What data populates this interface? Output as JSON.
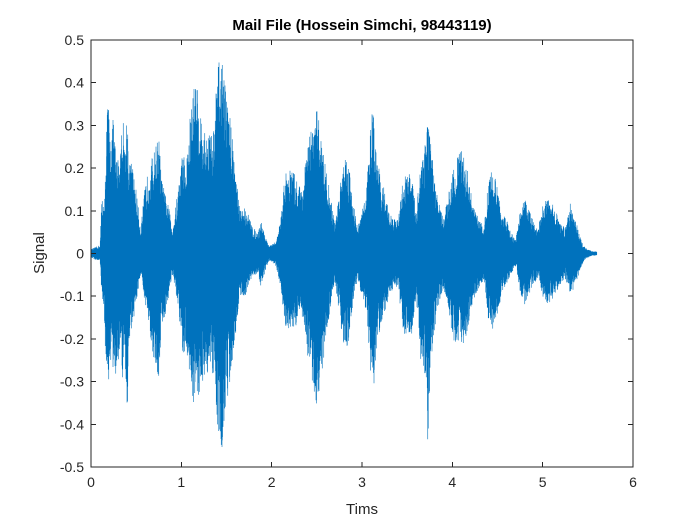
{
  "chart_data": {
    "type": "line",
    "title": "Mail File (Hossein Simchi, 98443119)",
    "xlabel": "Tims",
    "ylabel": "Signal",
    "xlim": [
      0,
      6
    ],
    "ylim": [
      -0.5,
      0.5
    ],
    "grid": false,
    "xticks": [
      0,
      1,
      2,
      3,
      4,
      5,
      6
    ],
    "xtick_labels": [
      "0",
      "1",
      "2",
      "3",
      "4",
      "5",
      "6"
    ],
    "yticks": [
      0.5,
      0.4,
      0.3,
      0.2,
      0.1,
      0,
      -0.1,
      -0.2,
      -0.3,
      -0.4,
      -0.5
    ],
    "ytick_labels": [
      "0.5",
      "0.4",
      "0.3",
      "0.2",
      "0.1",
      "0",
      "-0.1",
      "-0.2",
      "-0.3",
      "-0.4",
      "-0.5"
    ],
    "series_color": "#0072BD",
    "envelope": {
      "t": [
        0,
        0.1,
        0.12,
        0.15,
        0.17,
        0.19,
        0.21,
        0.25,
        0.28,
        0.32,
        0.35,
        0.38,
        0.4,
        0.42,
        0.45,
        0.5,
        0.55,
        0.6,
        0.65,
        0.7,
        0.75,
        0.78,
        0.82,
        0.86,
        0.9,
        0.95,
        1.0,
        1.02,
        1.05,
        1.1,
        1.15,
        1.2,
        1.25,
        1.3,
        1.35,
        1.4,
        1.45,
        1.48,
        1.52,
        1.55,
        1.6,
        1.65,
        1.7,
        1.73,
        1.76,
        1.8,
        1.85,
        1.88,
        1.92,
        1.96,
        2.0,
        2.05,
        2.1,
        2.15,
        2.2,
        2.25,
        2.3,
        2.35,
        2.4,
        2.45,
        2.5,
        2.55,
        2.6,
        2.65,
        2.7,
        2.75,
        2.8,
        2.85,
        2.9,
        2.95,
        3.0,
        3.05,
        3.1,
        3.13,
        3.16,
        3.2,
        3.25,
        3.3,
        3.35,
        3.4,
        3.45,
        3.5,
        3.55,
        3.6,
        3.65,
        3.7,
        3.73,
        3.76,
        3.8,
        3.85,
        3.9,
        3.95,
        4.0,
        4.05,
        4.1,
        4.15,
        4.2,
        4.25,
        4.3,
        4.35,
        4.4,
        4.45,
        4.5,
        4.55,
        4.6,
        4.65,
        4.7,
        4.75,
        4.8,
        4.85,
        4.9,
        4.95,
        5.0,
        5.05,
        5.1,
        5.15,
        5.2,
        5.25,
        5.3,
        5.35,
        5.4,
        5.45,
        5.5,
        5.55,
        5.6
      ],
      "upper": [
        0.01,
        0.02,
        0.14,
        0.11,
        0.31,
        0.37,
        0.28,
        0.32,
        0.22,
        0.24,
        0.33,
        0.25,
        0.36,
        0.21,
        0.22,
        0.15,
        0.06,
        0.16,
        0.21,
        0.24,
        0.28,
        0.18,
        0.14,
        0.11,
        0.06,
        0.13,
        0.22,
        0.25,
        0.2,
        0.33,
        0.42,
        0.36,
        0.28,
        0.3,
        0.27,
        0.44,
        0.47,
        0.4,
        0.35,
        0.31,
        0.2,
        0.1,
        0.11,
        0.1,
        0.08,
        0.06,
        0.05,
        0.08,
        0.05,
        0.02,
        0.02,
        0.03,
        0.08,
        0.19,
        0.2,
        0.19,
        0.16,
        0.17,
        0.26,
        0.3,
        0.34,
        0.28,
        0.2,
        0.14,
        0.07,
        0.15,
        0.24,
        0.22,
        0.13,
        0.06,
        0.1,
        0.15,
        0.32,
        0.34,
        0.22,
        0.19,
        0.15,
        0.1,
        0.08,
        0.08,
        0.17,
        0.2,
        0.18,
        0.1,
        0.22,
        0.28,
        0.32,
        0.26,
        0.18,
        0.12,
        0.08,
        0.13,
        0.2,
        0.23,
        0.24,
        0.22,
        0.15,
        0.1,
        0.08,
        0.06,
        0.18,
        0.2,
        0.15,
        0.1,
        0.08,
        0.05,
        0.03,
        0.1,
        0.13,
        0.11,
        0.07,
        0.06,
        0.11,
        0.13,
        0.12,
        0.1,
        0.07,
        0.06,
        0.12,
        0.09,
        0.05,
        0.02,
        0.01,
        0.005,
        0.005
      ],
      "lower": [
        -0.01,
        -0.02,
        -0.1,
        -0.18,
        -0.28,
        -0.33,
        -0.25,
        -0.28,
        -0.3,
        -0.22,
        -0.3,
        -0.28,
        -0.44,
        -0.2,
        -0.18,
        -0.12,
        -0.05,
        -0.13,
        -0.18,
        -0.26,
        -0.3,
        -0.17,
        -0.15,
        -0.1,
        -0.05,
        -0.11,
        -0.2,
        -0.25,
        -0.22,
        -0.3,
        -0.37,
        -0.33,
        -0.29,
        -0.28,
        -0.3,
        -0.4,
        -0.46,
        -0.38,
        -0.33,
        -0.28,
        -0.19,
        -0.1,
        -0.1,
        -0.09,
        -0.07,
        -0.05,
        -0.05,
        -0.08,
        -0.05,
        -0.02,
        -0.02,
        -0.03,
        -0.08,
        -0.17,
        -0.19,
        -0.18,
        -0.15,
        -0.16,
        -0.24,
        -0.3,
        -0.36,
        -0.3,
        -0.2,
        -0.13,
        -0.07,
        -0.14,
        -0.23,
        -0.21,
        -0.12,
        -0.06,
        -0.1,
        -0.14,
        -0.3,
        -0.33,
        -0.22,
        -0.18,
        -0.14,
        -0.1,
        -0.08,
        -0.08,
        -0.17,
        -0.22,
        -0.2,
        -0.1,
        -0.25,
        -0.3,
        -0.45,
        -0.27,
        -0.18,
        -0.12,
        -0.08,
        -0.12,
        -0.2,
        -0.22,
        -0.22,
        -0.2,
        -0.14,
        -0.1,
        -0.08,
        -0.06,
        -0.16,
        -0.18,
        -0.14,
        -0.1,
        -0.07,
        -0.05,
        -0.03,
        -0.09,
        -0.12,
        -0.1,
        -0.07,
        -0.06,
        -0.1,
        -0.12,
        -0.11,
        -0.09,
        -0.07,
        -0.06,
        -0.1,
        -0.08,
        -0.05,
        -0.02,
        -0.01,
        -0.005,
        -0.005
      ]
    }
  }
}
